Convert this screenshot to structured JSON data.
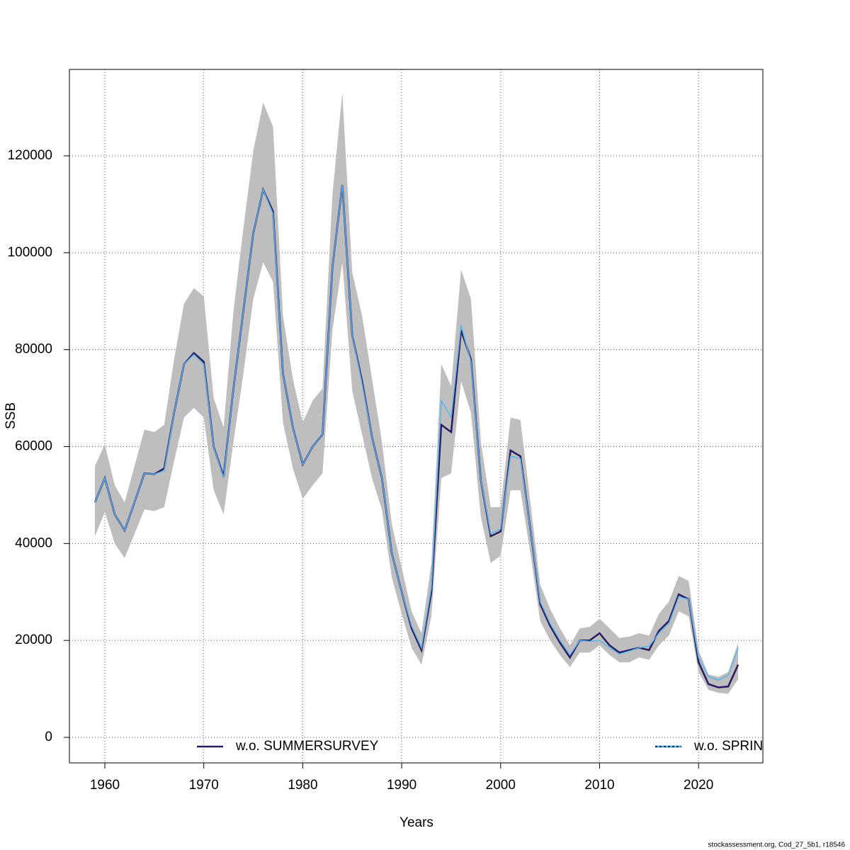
{
  "chart_data": {
    "type": "line",
    "xlabel": "Years",
    "ylabel": "SSB",
    "footnote": "stockassessment.org, Cod_27_5b1, r18546",
    "x": [
      1959,
      1960,
      1961,
      1962,
      1963,
      1964,
      1965,
      1966,
      1967,
      1968,
      1969,
      1970,
      1971,
      1972,
      1973,
      1974,
      1975,
      1976,
      1977,
      1978,
      1979,
      1980,
      1981,
      1982,
      1983,
      1984,
      1985,
      1986,
      1987,
      1988,
      1989,
      1990,
      1991,
      1992,
      1993,
      1994,
      1995,
      1996,
      1997,
      1998,
      1999,
      2000,
      2001,
      2002,
      2003,
      2004,
      2005,
      2006,
      2007,
      2008,
      2009,
      2010,
      2011,
      2012,
      2013,
      2014,
      2015,
      2016,
      2017,
      2018,
      2019,
      2020,
      2021,
      2022,
      2023,
      2024
    ],
    "band": {
      "color": "#bebebe",
      "upper": [
        56000,
        60500,
        52000,
        48500,
        56000,
        63500,
        63000,
        64500,
        78000,
        89500,
        92700,
        91000,
        70000,
        64000,
        88000,
        105000,
        121000,
        131000,
        126000,
        87000,
        74000,
        65000,
        69500,
        72000,
        112000,
        133000,
        96000,
        87000,
        74000,
        61000,
        44000,
        35000,
        26000,
        21500,
        36000,
        77000,
        72500,
        96500,
        90500,
        61000,
        47500,
        47500,
        66000,
        65500,
        48500,
        31500,
        26500,
        22500,
        19000,
        22500,
        22800,
        24500,
        22500,
        20500,
        20800,
        21500,
        21000,
        25500,
        28000,
        33300,
        32300,
        18000,
        13000,
        12500,
        13500,
        19500
      ],
      "lower": [
        41500,
        46500,
        40000,
        37000,
        42000,
        47000,
        46700,
        47500,
        57000,
        66000,
        68000,
        66000,
        51000,
        46000,
        61000,
        75000,
        90500,
        98000,
        94000,
        65000,
        55500,
        49200,
        52000,
        54500,
        84000,
        98000,
        71500,
        62500,
        53500,
        47000,
        33000,
        25500,
        18500,
        15000,
        25000,
        53500,
        54500,
        73500,
        67000,
        45500,
        36000,
        37500,
        51000,
        51000,
        38000,
        24000,
        20000,
        17000,
        14500,
        17500,
        17500,
        19000,
        17000,
        15500,
        15500,
        16500,
        16000,
        19000,
        21000,
        26000,
        25000,
        13500,
        9800,
        9200,
        9000,
        12000
      ]
    },
    "series": [
      {
        "name": "w.o. SUMMERSURVEY",
        "color": "#2a1b5e",
        "width": 2.5,
        "dash": false,
        "values": [
          48500,
          53500,
          46000,
          42700,
          48500,
          54500,
          54300,
          55500,
          67000,
          77000,
          79300,
          77500,
          60000,
          53800,
          72000,
          88000,
          104000,
          113000,
          108500,
          75000,
          64000,
          56300,
          60000,
          62500,
          97000,
          114000,
          83000,
          73500,
          62000,
          53500,
          38000,
          30000,
          22500,
          18000,
          30000,
          64500,
          63000,
          84000,
          78000,
          53000,
          41500,
          42500,
          59200,
          58000,
          43000,
          27500,
          23000,
          19500,
          16500,
          20000,
          20000,
          21500,
          19000,
          17500,
          18000,
          18500,
          18000,
          22000,
          24000,
          29500,
          28500,
          15500,
          11000,
          10300,
          10500,
          15000
        ]
      },
      {
        "name": "w.o. SPRIN",
        "color": "#5ab4f0",
        "width": 1.5,
        "dash": true,
        "values": [
          48500,
          53500,
          46000,
          42700,
          48500,
          54500,
          54300,
          55000,
          67000,
          77000,
          79000,
          77000,
          60000,
          53500,
          72000,
          88000,
          104000,
          113000,
          108000,
          75000,
          64000,
          56300,
          60000,
          62500,
          97000,
          114000,
          83000,
          73000,
          62000,
          53500,
          38000,
          30000,
          23000,
          18500,
          31000,
          69500,
          66000,
          85000,
          77500,
          53000,
          42000,
          43000,
          58000,
          57500,
          43000,
          28000,
          23500,
          20000,
          17000,
          20000,
          19800,
          20000,
          18500,
          17200,
          17800,
          18500,
          18800,
          21500,
          23500,
          29000,
          28500,
          16500,
          12500,
          11800,
          12800,
          18500
        ]
      }
    ],
    "xlim": [
      1956.42,
      2026.5
    ],
    "ylim": [
      -5262,
      137830
    ],
    "xticks": [
      1960,
      1970,
      1980,
      1990,
      2000,
      2010,
      2020
    ],
    "yticks": [
      0,
      20000,
      40000,
      60000,
      80000,
      100000,
      120000
    ],
    "grid": true,
    "legend": "bottom"
  }
}
